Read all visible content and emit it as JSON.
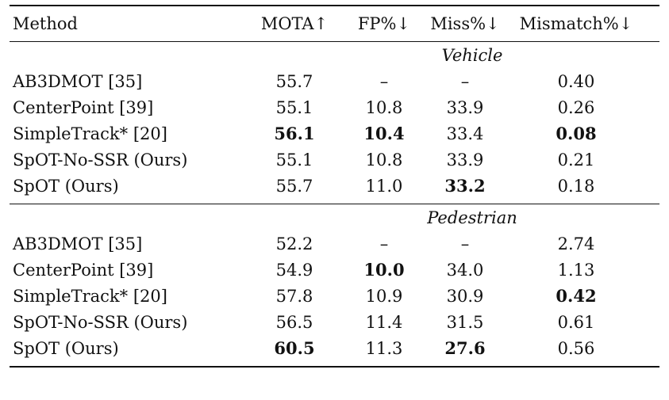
{
  "headers": {
    "method": "Method",
    "mota": "MOTA↑",
    "fp": "FP%↓",
    "miss": "Miss%↓",
    "mismatch": "Mismatch%↓"
  },
  "groups": [
    {
      "title": "Vehicle",
      "rows": [
        {
          "method": "AB3DMOT [35]",
          "mota": "55.7",
          "fp": "–",
          "miss": "–",
          "mismatch": "0.40",
          "bold": []
        },
        {
          "method": "CenterPoint [39]",
          "mota": "55.1",
          "fp": "10.8",
          "miss": "33.9",
          "mismatch": "0.26",
          "bold": []
        },
        {
          "method": "SimpleTrack* [20]",
          "mota": "56.1",
          "fp": "10.4",
          "miss": "33.4",
          "mismatch": "0.08",
          "bold": [
            "mota",
            "fp",
            "mismatch"
          ]
        },
        {
          "method": "SpOT-No-SSR (Ours)",
          "mota": "55.1",
          "fp": "10.8",
          "miss": "33.9",
          "mismatch": "0.21",
          "bold": []
        },
        {
          "method": "SpOT (Ours)",
          "mota": "55.7",
          "fp": "11.0",
          "miss": "33.2",
          "mismatch": "0.18",
          "bold": [
            "miss"
          ]
        }
      ]
    },
    {
      "title": "Pedestrian",
      "rows": [
        {
          "method": "AB3DMOT [35]",
          "mota": "52.2",
          "fp": "–",
          "miss": "–",
          "mismatch": "2.74",
          "bold": []
        },
        {
          "method": "CenterPoint [39]",
          "mota": "54.9",
          "fp": "10.0",
          "miss": "34.0",
          "mismatch": "1.13",
          "bold": [
            "fp"
          ]
        },
        {
          "method": "SimpleTrack* [20]",
          "mota": "57.8",
          "fp": "10.9",
          "miss": "30.9",
          "mismatch": "0.42",
          "bold": [
            "mismatch"
          ]
        },
        {
          "method": "SpOT-No-SSR (Ours)",
          "mota": "56.5",
          "fp": "11.4",
          "miss": "31.5",
          "mismatch": "0.61",
          "bold": []
        },
        {
          "method": "SpOT (Ours)",
          "mota": "60.5",
          "fp": "11.3",
          "miss": "27.6",
          "mismatch": "0.56",
          "bold": [
            "mota",
            "miss"
          ]
        }
      ]
    }
  ]
}
